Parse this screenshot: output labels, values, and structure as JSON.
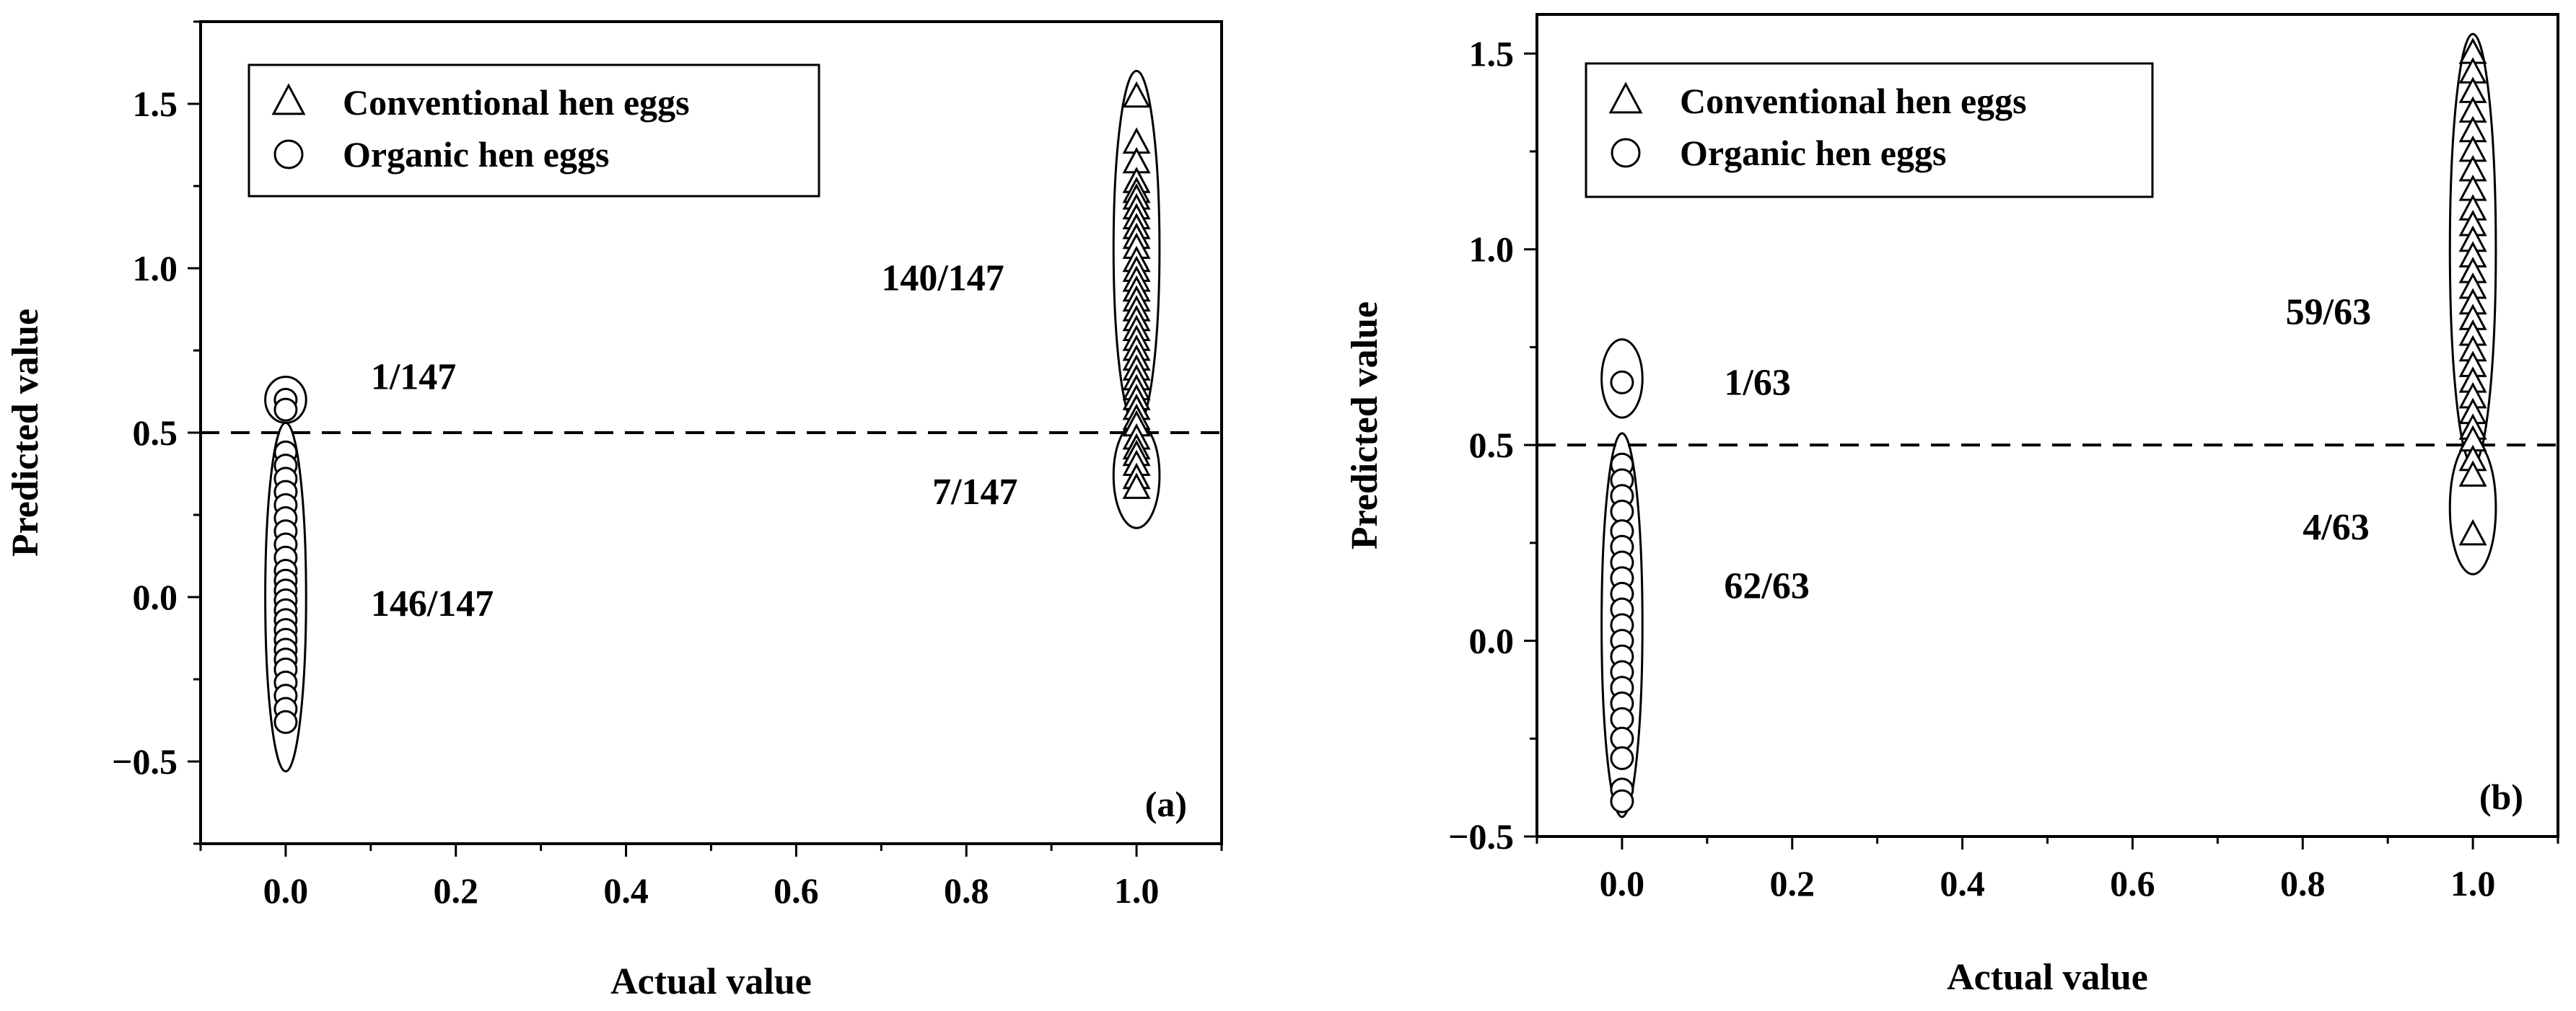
{
  "chart_data": [
    {
      "type": "scatter",
      "panel_label": "(a)",
      "xlabel": "Actual value",
      "ylabel": "Predicted value",
      "xlim": [
        -0.1,
        1.1
      ],
      "ylim": [
        -0.75,
        1.75
      ],
      "xticks": [
        0.0,
        0.2,
        0.4,
        0.6,
        0.8,
        1.0
      ],
      "xtick_labels": [
        "0.0",
        "0.2",
        "0.4",
        "0.6",
        "0.8",
        "1.0"
      ],
      "yticks": [
        -0.5,
        0.0,
        0.5,
        1.0,
        1.5
      ],
      "ytick_labels": [
        "−0.5",
        "0.0",
        "0.5",
        "1.0",
        "1.5"
      ],
      "threshold": 0.5,
      "legend": [
        {
          "name": "Conventional hen eggs",
          "marker": "triangle"
        },
        {
          "name": "Organic hen eggs",
          "marker": "circle"
        }
      ],
      "series": [
        {
          "name": "Conventional hen eggs",
          "x": 1.0,
          "y": [
            1.52,
            1.38,
            1.32,
            1.26,
            1.23,
            1.21,
            1.18,
            1.15,
            1.12,
            1.09,
            1.06,
            1.02,
            0.99,
            0.96,
            0.93,
            0.9,
            0.87,
            0.84,
            0.81,
            0.78,
            0.75,
            0.72,
            0.69,
            0.66,
            0.63,
            0.6,
            0.57,
            0.54,
            0.52,
            0.48,
            0.45,
            0.43,
            0.4,
            0.36,
            0.33
          ]
        },
        {
          "name": "Organic hen eggs",
          "x": 0.0,
          "y": [
            0.6,
            0.57,
            0.44,
            0.4,
            0.36,
            0.32,
            0.28,
            0.24,
            0.2,
            0.16,
            0.12,
            0.08,
            0.05,
            0.02,
            -0.01,
            -0.04,
            -0.07,
            -0.1,
            -0.13,
            -0.16,
            -0.19,
            -0.22,
            -0.26,
            -0.3,
            -0.34,
            -0.38
          ]
        }
      ],
      "groups": [
        {
          "cx": 0.0,
          "cy": 0.6,
          "rx": 0.024,
          "ry": 0.07
        },
        {
          "cx": 0.0,
          "cy": 0.0,
          "rx": 0.024,
          "ry": 0.53
        },
        {
          "cx": 1.0,
          "cy": 1.06,
          "rx": 0.027,
          "ry": 0.54
        },
        {
          "cx": 1.0,
          "cy": 0.37,
          "rx": 0.027,
          "ry": 0.16
        }
      ],
      "annotations": [
        {
          "text": "1/147",
          "x": 0.1,
          "y": 0.67
        },
        {
          "text": "146/147",
          "x": 0.1,
          "y": -0.02
        },
        {
          "text": "140/147",
          "x": 0.7,
          "y": 0.97
        },
        {
          "text": "7/147",
          "x": 0.76,
          "y": 0.32
        }
      ]
    },
    {
      "type": "scatter",
      "panel_label": "(b)",
      "xlabel": "Actual value",
      "ylabel": "Predicted value",
      "xlim": [
        -0.1,
        1.1
      ],
      "ylim": [
        -0.5,
        1.6
      ],
      "xticks": [
        0.0,
        0.2,
        0.4,
        0.6,
        0.8,
        1.0
      ],
      "xtick_labels": [
        "0.0",
        "0.2",
        "0.4",
        "0.6",
        "0.8",
        "1.0"
      ],
      "yticks": [
        -0.5,
        0.0,
        0.5,
        1.0,
        1.5
      ],
      "ytick_labels": [
        "−0.5",
        "0.0",
        "0.5",
        "1.0",
        "1.5"
      ],
      "threshold": 0.5,
      "legend": [
        {
          "name": "Conventional hen eggs",
          "marker": "triangle"
        },
        {
          "name": "Organic hen eggs",
          "marker": "circle"
        }
      ],
      "series": [
        {
          "name": "Conventional hen eggs",
          "x": 1.0,
          "y": [
            1.5,
            1.45,
            1.4,
            1.35,
            1.3,
            1.25,
            1.2,
            1.15,
            1.1,
            1.06,
            1.02,
            0.98,
            0.94,
            0.9,
            0.86,
            0.82,
            0.78,
            0.74,
            0.7,
            0.66,
            0.62,
            0.58,
            0.54,
            0.51,
            0.46,
            0.42,
            0.27
          ]
        },
        {
          "name": "Organic hen eggs",
          "x": 0.0,
          "y": [
            0.66,
            0.45,
            0.41,
            0.37,
            0.33,
            0.28,
            0.24,
            0.2,
            0.16,
            0.12,
            0.08,
            0.04,
            0.0,
            -0.04,
            -0.08,
            -0.12,
            -0.16,
            -0.2,
            -0.25,
            -0.3,
            -0.38,
            -0.41
          ]
        }
      ],
      "groups": [
        {
          "cx": 0.0,
          "cy": 0.67,
          "rx": 0.024,
          "ry": 0.1
        },
        {
          "cx": 0.0,
          "cy": 0.04,
          "rx": 0.024,
          "ry": 0.49
        },
        {
          "cx": 1.0,
          "cy": 1.0,
          "rx": 0.027,
          "ry": 0.55
        },
        {
          "cx": 1.0,
          "cy": 0.34,
          "rx": 0.027,
          "ry": 0.17
        }
      ],
      "annotations": [
        {
          "text": "1/63",
          "x": 0.12,
          "y": 0.66
        },
        {
          "text": "62/63",
          "x": 0.12,
          "y": 0.14
        },
        {
          "text": "59/63",
          "x": 0.78,
          "y": 0.84
        },
        {
          "text": "4/63",
          "x": 0.8,
          "y": 0.29
        }
      ]
    }
  ]
}
